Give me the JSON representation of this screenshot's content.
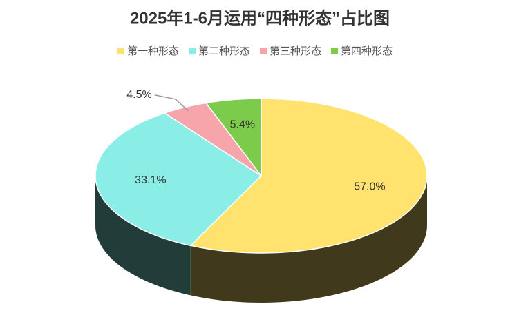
{
  "chart_data": {
    "type": "pie3d",
    "title": "2025年1-6月运用“四种形态”占比图",
    "categories": [
      "第一种形态",
      "第二种形态",
      "第三种形态",
      "第四种形态"
    ],
    "values": [
      57.0,
      33.1,
      4.5,
      5.4
    ],
    "value_labels": [
      "57.0%",
      "33.1%",
      "4.5%",
      "5.4%"
    ],
    "colors": [
      "#ffe36e",
      "#8aeee6",
      "#f6a5ab",
      "#7ccb4a"
    ],
    "legend": "top"
  }
}
